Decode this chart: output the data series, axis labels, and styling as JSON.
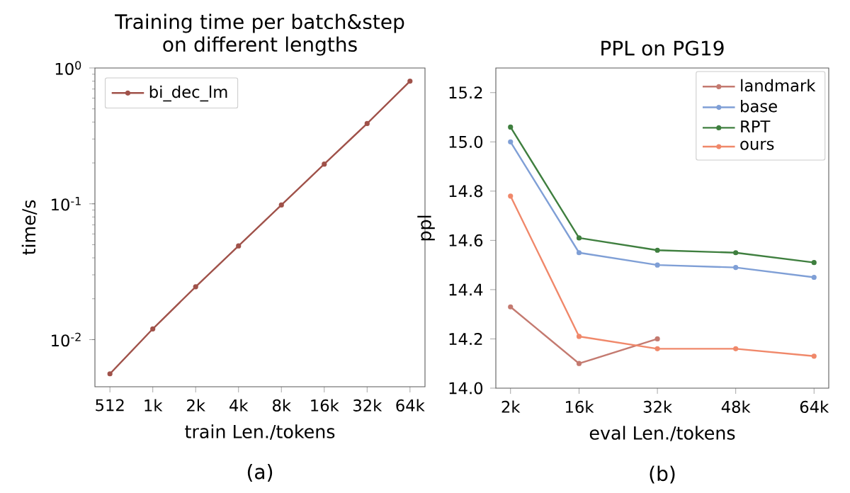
{
  "chart_data": [
    {
      "type": "line",
      "title": "Training time per batch&step on different lengths",
      "xlabel": "train Len./tokens",
      "ylabel": "time/s",
      "categories": [
        "512",
        "1k",
        "2k",
        "4k",
        "8k",
        "16k",
        "32k",
        "64k"
      ],
      "series": [
        {
          "name": "bi_dec_lm",
          "color": "#a0524a",
          "values": [
            0.0056,
            0.012,
            0.0245,
            0.049,
            0.098,
            0.196,
            0.39,
            0.8
          ]
        }
      ],
      "log": true,
      "ylim": [
        0.0045,
        1
      ],
      "yticks": [
        {
          "value": 0.01,
          "label": "10$^{-2}$"
        },
        {
          "value": 0.1,
          "label": "10$^{-1}$"
        },
        {
          "value": 1,
          "label": "10$^{0}$"
        }
      ],
      "legend": "top left",
      "marker": "circle",
      "line_style": "solid",
      "grid": false,
      "annotations": [
        "(a)"
      ]
    },
    {
      "type": "line",
      "title": "PPL on PG19",
      "xlabel": "eval Len./tokens",
      "ylabel": "ppl",
      "x": [
        2,
        16,
        32,
        48,
        64
      ],
      "series": [
        {
          "name": "landmark",
          "color": "#c47a70",
          "values": [
            14.33,
            14.1,
            14.2,
            null,
            null
          ]
        },
        {
          "name": "base",
          "color": "#7f9fd6",
          "values": [
            15.0,
            14.55,
            14.5,
            14.49,
            14.45
          ]
        },
        {
          "name": "RPT",
          "color": "#3f7f3f",
          "values": [
            15.06,
            14.61,
            14.56,
            14.55,
            14.51
          ]
        },
        {
          "name": "ours",
          "color": "#f0886a",
          "values": [
            14.78,
            14.21,
            14.16,
            14.16,
            14.13
          ]
        }
      ],
      "xlim": [
        -1,
        67
      ],
      "xticks": [
        {
          "value": 2,
          "label": "2k"
        },
        {
          "value": 16,
          "label": "16k"
        },
        {
          "value": 32,
          "label": "32k"
        },
        {
          "value": 48,
          "label": "48k"
        },
        {
          "value": 64,
          "label": "64k"
        }
      ],
      "ylim": [
        14.0,
        15.3
      ],
      "yticks": [
        {
          "value": 14,
          "label": "14.0"
        },
        14.2,
        14.4,
        14.6,
        14.8,
        {
          "value": 15,
          "label": "15.0"
        },
        15.2
      ],
      "legend": "top right",
      "marker": "circle",
      "line_style": "solid",
      "grid": false,
      "annotations": [
        "(b)"
      ]
    }
  ]
}
